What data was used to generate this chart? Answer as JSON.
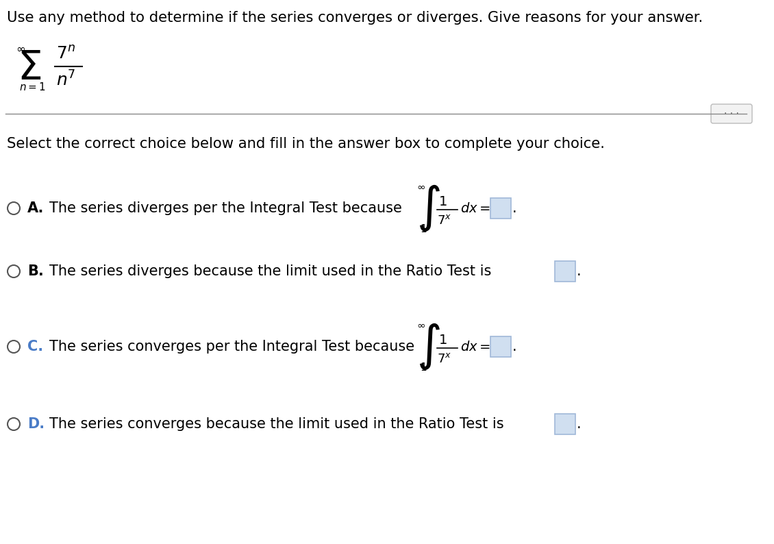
{
  "title": "Use any method to determine if the series converges or diverges. Give reasons for your answer.",
  "select_text": "Select the correct choice below and fill in the answer box to complete your choice.",
  "background_color": "#ffffff",
  "text_color": "#000000",
  "option_A_label": "A.",
  "option_A_text": "The series diverges per the Integral Test because",
  "option_B_label": "B.",
  "option_B_text": "The series diverges because the limit used in the Ratio Test is",
  "option_C_label": "C.",
  "option_C_text": "The series converges per the Integral Test because",
  "option_D_label": "D.",
  "option_D_text": "The series converges because the limit used in the Ratio Test is",
  "label_color_A": "#000000",
  "label_color_B": "#000000",
  "label_color_C": "#4a7cc7",
  "label_color_D": "#4a7cc7",
  "answer_box_color": "#d0dff0",
  "answer_box_edge": "#a0b8d8",
  "separator_color": "#888888",
  "circle_color": "#555555",
  "dots_color": "#555555"
}
